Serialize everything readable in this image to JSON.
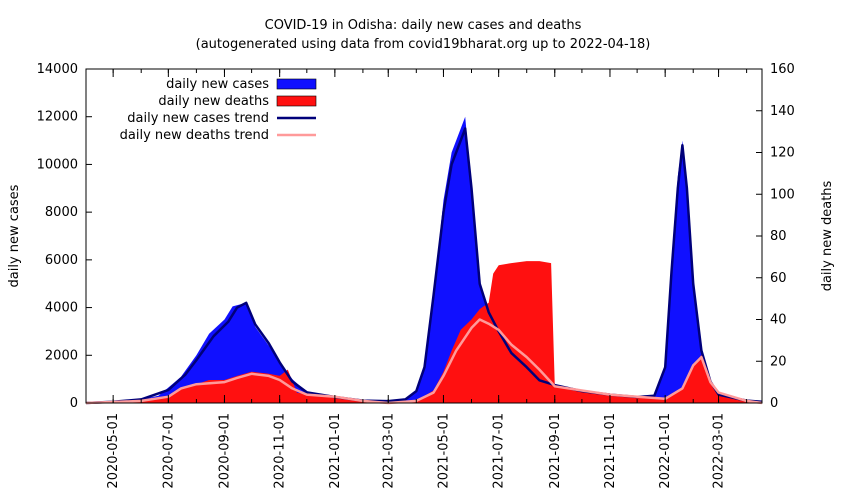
{
  "chart_data": {
    "type": "bar",
    "title": "COVID-19 in Odisha: daily new cases and deaths",
    "subtitle": "(autogenerated using data from covid19bharat.org up to 2022-04-18)",
    "ylabel": "daily new cases",
    "y2label": "daily new deaths",
    "xlim": [
      "2020-04-01",
      "2022-04-18"
    ],
    "ylim": [
      0,
      14000
    ],
    "y2lim": [
      0,
      160
    ],
    "yticks": [
      "0",
      "2000",
      "4000",
      "6000",
      "8000",
      "10000",
      "12000",
      "14000"
    ],
    "y2ticks": [
      "0",
      "20",
      "40",
      "60",
      "80",
      "100",
      "120",
      "140",
      "160"
    ],
    "xticks": [
      "2020-05-01",
      "2020-07-01",
      "2020-09-01",
      "2020-11-01",
      "2021-01-01",
      "2021-03-01",
      "2021-05-01",
      "2021-07-01",
      "2021-09-01",
      "2021-11-01",
      "2022-01-01",
      "2022-03-01"
    ],
    "legend_position": "top-left",
    "colors": {
      "cases": "#1010ff",
      "deaths": "#ff1010",
      "cases_trend": "#00007a",
      "deaths_trend": "#ff9a9a"
    },
    "series": [
      {
        "name": "daily new cases",
        "key": "cases",
        "points": [
          [
            "2020-04-01",
            0
          ],
          [
            "2020-05-01",
            50
          ],
          [
            "2020-06-01",
            150
          ],
          [
            "2020-06-20",
            300
          ],
          [
            "2020-07-01",
            650
          ],
          [
            "2020-07-15",
            1100
          ],
          [
            "2020-08-01",
            2000
          ],
          [
            "2020-08-15",
            2900
          ],
          [
            "2020-09-01",
            3500
          ],
          [
            "2020-09-10",
            4050
          ],
          [
            "2020-09-20",
            4150
          ],
          [
            "2020-09-25",
            4200
          ],
          [
            "2020-10-05",
            3200
          ],
          [
            "2020-10-20",
            2400
          ],
          [
            "2020-11-01",
            1700
          ],
          [
            "2020-11-15",
            1000
          ],
          [
            "2020-12-01",
            450
          ],
          [
            "2021-01-01",
            250
          ],
          [
            "2021-02-01",
            100
          ],
          [
            "2021-03-01",
            80
          ],
          [
            "2021-03-20",
            120
          ],
          [
            "2021-04-01",
            500
          ],
          [
            "2021-04-10",
            1500
          ],
          [
            "2021-04-20",
            4500
          ],
          [
            "2021-05-01",
            8500
          ],
          [
            "2021-05-10",
            10500
          ],
          [
            "2021-05-20",
            11500
          ],
          [
            "2021-05-25",
            12000
          ],
          [
            "2021-06-01",
            9000
          ],
          [
            "2021-06-10",
            5000
          ],
          [
            "2021-06-20",
            4000
          ],
          [
            "2021-07-01",
            3200
          ],
          [
            "2021-07-15",
            2300
          ],
          [
            "2021-08-01",
            1600
          ],
          [
            "2021-08-15",
            1000
          ],
          [
            "2021-09-01",
            750
          ],
          [
            "2021-10-01",
            500
          ],
          [
            "2021-11-01",
            350
          ],
          [
            "2021-12-01",
            250
          ],
          [
            "2021-12-20",
            300
          ],
          [
            "2022-01-01",
            1500
          ],
          [
            "2022-01-08",
            6000
          ],
          [
            "2022-01-15",
            9500
          ],
          [
            "2022-01-20",
            11000
          ],
          [
            "2022-01-25",
            9000
          ],
          [
            "2022-02-01",
            5000
          ],
          [
            "2022-02-10",
            2200
          ],
          [
            "2022-02-20",
            900
          ],
          [
            "2022-03-01",
            350
          ],
          [
            "2022-04-01",
            100
          ],
          [
            "2022-04-18",
            50
          ]
        ]
      },
      {
        "name": "daily new deaths",
        "key": "deaths",
        "points": [
          [
            "2020-04-01",
            0
          ],
          [
            "2020-06-01",
            1
          ],
          [
            "2020-07-01",
            3
          ],
          [
            "2020-07-10",
            6
          ],
          [
            "2020-08-01",
            9
          ],
          [
            "2020-08-15",
            11
          ],
          [
            "2020-09-01",
            11
          ],
          [
            "2020-09-15",
            13
          ],
          [
            "2020-10-01",
            15
          ],
          [
            "2020-10-20",
            14
          ],
          [
            "2020-11-01",
            13
          ],
          [
            "2020-11-10",
            16
          ],
          [
            "2020-11-20",
            5
          ],
          [
            "2020-12-01",
            4
          ],
          [
            "2021-01-01",
            3
          ],
          [
            "2021-02-01",
            1
          ],
          [
            "2021-03-01",
            0
          ],
          [
            "2021-04-01",
            1
          ],
          [
            "2021-04-20",
            6
          ],
          [
            "2021-05-01",
            15
          ],
          [
            "2021-05-10",
            25
          ],
          [
            "2021-05-20",
            35
          ],
          [
            "2021-06-01",
            40
          ],
          [
            "2021-06-10",
            45
          ],
          [
            "2021-06-20",
            48
          ],
          [
            "2021-06-25",
            62
          ],
          [
            "2021-07-01",
            66
          ],
          [
            "2021-07-15",
            67
          ],
          [
            "2021-08-01",
            68
          ],
          [
            "2021-08-15",
            68
          ],
          [
            "2021-08-28",
            67
          ],
          [
            "2021-09-01",
            8
          ],
          [
            "2021-10-01",
            6
          ],
          [
            "2021-11-01",
            4
          ],
          [
            "2021-12-01",
            3
          ],
          [
            "2022-01-01",
            2
          ],
          [
            "2022-01-20",
            7
          ],
          [
            "2022-02-01",
            18
          ],
          [
            "2022-02-10",
            23
          ],
          [
            "2022-02-20",
            10
          ],
          [
            "2022-03-01",
            5
          ],
          [
            "2022-04-01",
            1
          ],
          [
            "2022-04-18",
            0
          ]
        ]
      },
      {
        "name": "daily new cases trend",
        "key": "cases_trend",
        "points": [
          [
            "2020-04-01",
            0
          ],
          [
            "2020-05-01",
            50
          ],
          [
            "2020-06-01",
            150
          ],
          [
            "2020-07-01",
            550
          ],
          [
            "2020-07-20",
            1200
          ],
          [
            "2020-08-01",
            1800
          ],
          [
            "2020-08-20",
            2800
          ],
          [
            "2020-09-05",
            3400
          ],
          [
            "2020-09-15",
            4000
          ],
          [
            "2020-09-25",
            4200
          ],
          [
            "2020-10-05",
            3300
          ],
          [
            "2020-10-20",
            2500
          ],
          [
            "2020-11-01",
            1700
          ],
          [
            "2020-11-15",
            900
          ],
          [
            "2020-12-01",
            450
          ],
          [
            "2021-01-01",
            250
          ],
          [
            "2021-02-01",
            100
          ],
          [
            "2021-03-01",
            80
          ],
          [
            "2021-03-20",
            150
          ],
          [
            "2021-04-01",
            500
          ],
          [
            "2021-04-10",
            1500
          ],
          [
            "2021-04-20",
            4500
          ],
          [
            "2021-05-01",
            8000
          ],
          [
            "2021-05-10",
            10000
          ],
          [
            "2021-05-20",
            11000
          ],
          [
            "2021-05-25",
            11500
          ],
          [
            "2021-06-01",
            9000
          ],
          [
            "2021-06-10",
            5000
          ],
          [
            "2021-06-20",
            3800
          ],
          [
            "2021-07-01",
            3000
          ],
          [
            "2021-07-15",
            2100
          ],
          [
            "2021-08-01",
            1500
          ],
          [
            "2021-08-15",
            950
          ],
          [
            "2021-09-01",
            750
          ],
          [
            "2021-10-01",
            500
          ],
          [
            "2021-11-01",
            350
          ],
          [
            "2021-12-01",
            250
          ],
          [
            "2021-12-20",
            300
          ],
          [
            "2022-01-01",
            1500
          ],
          [
            "2022-01-08",
            5500
          ],
          [
            "2022-01-15",
            9000
          ],
          [
            "2022-01-20",
            10800
          ],
          [
            "2022-01-25",
            9000
          ],
          [
            "2022-02-01",
            5000
          ],
          [
            "2022-02-10",
            2200
          ],
          [
            "2022-02-20",
            900
          ],
          [
            "2022-03-01",
            350
          ],
          [
            "2022-04-01",
            100
          ],
          [
            "2022-04-18",
            50
          ]
        ]
      },
      {
        "name": "daily new deaths trend",
        "key": "deaths_trend",
        "points": [
          [
            "2020-04-01",
            0
          ],
          [
            "2020-06-01",
            1
          ],
          [
            "2020-07-01",
            3
          ],
          [
            "2020-07-15",
            7
          ],
          [
            "2020-08-01",
            9
          ],
          [
            "2020-09-01",
            10
          ],
          [
            "2020-09-15",
            12
          ],
          [
            "2020-10-01",
            14
          ],
          [
            "2020-10-20",
            13
          ],
          [
            "2020-11-01",
            11
          ],
          [
            "2020-11-15",
            7
          ],
          [
            "2020-12-01",
            4
          ],
          [
            "2021-01-01",
            3
          ],
          [
            "2021-02-01",
            1
          ],
          [
            "2021-03-01",
            0
          ],
          [
            "2021-04-01",
            1
          ],
          [
            "2021-04-20",
            5
          ],
          [
            "2021-05-01",
            13
          ],
          [
            "2021-05-15",
            25
          ],
          [
            "2021-06-01",
            36
          ],
          [
            "2021-06-10",
            40
          ],
          [
            "2021-06-20",
            38
          ],
          [
            "2021-07-01",
            35
          ],
          [
            "2021-07-15",
            28
          ],
          [
            "2021-08-01",
            22
          ],
          [
            "2021-08-15",
            16
          ],
          [
            "2021-09-01",
            8
          ],
          [
            "2021-10-01",
            6
          ],
          [
            "2021-11-01",
            4
          ],
          [
            "2021-12-01",
            3
          ],
          [
            "2022-01-01",
            2
          ],
          [
            "2022-01-20",
            7
          ],
          [
            "2022-02-01",
            18
          ],
          [
            "2022-02-10",
            22
          ],
          [
            "2022-02-20",
            10
          ],
          [
            "2022-03-01",
            5
          ],
          [
            "2022-04-01",
            1
          ],
          [
            "2022-04-18",
            0
          ]
        ]
      }
    ]
  }
}
